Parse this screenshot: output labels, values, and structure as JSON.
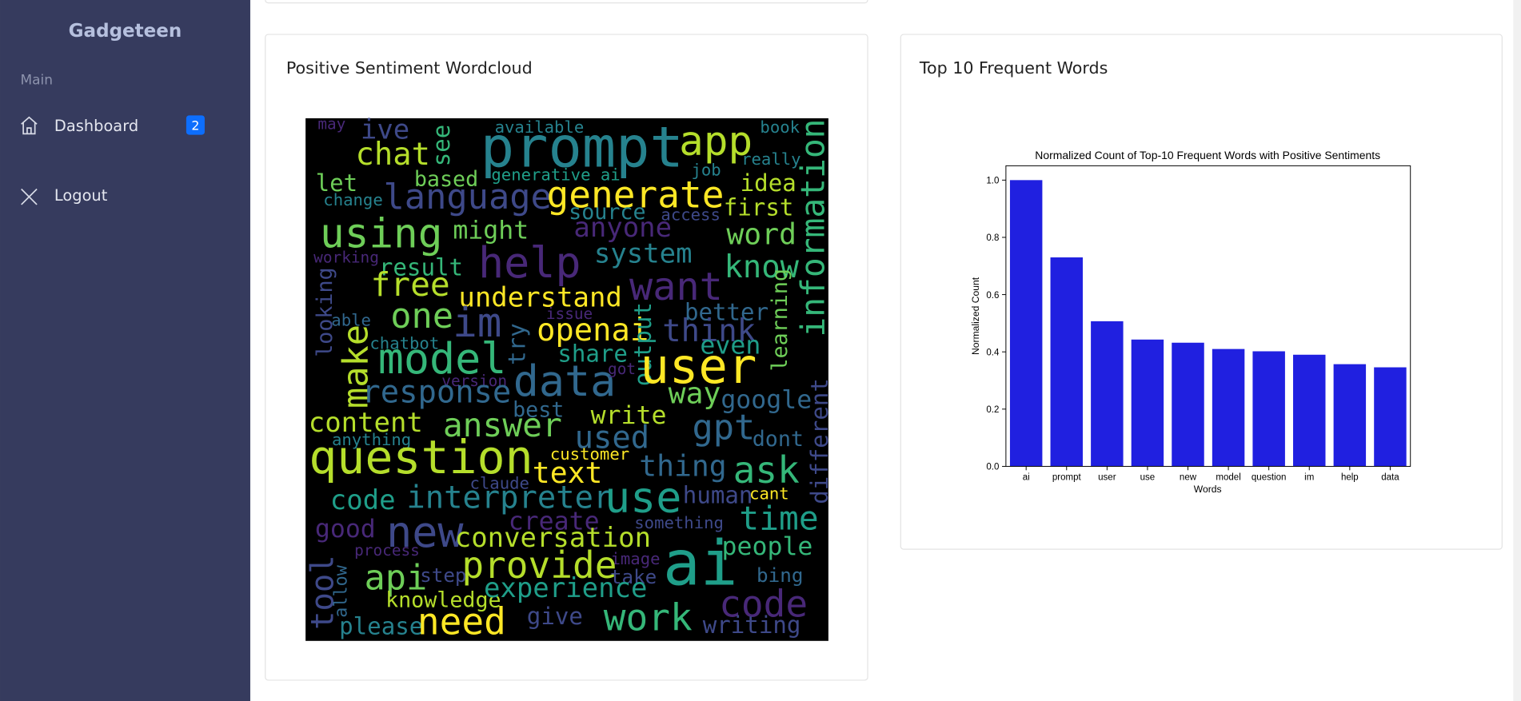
{
  "sidebar": {
    "brand": "Gadgeteen",
    "section": "Main",
    "nav": [
      {
        "label": "Dashboard",
        "badge": 2
      },
      {
        "label": "Logout"
      }
    ]
  },
  "cards": [
    {
      "title": "Positive Sentiment Wordcloud"
    },
    {
      "title": "Top 10 Frequent Words"
    }
  ],
  "wordcloud": {
    "words": [
      "prompt",
      "app",
      "ive",
      "may",
      "available",
      "book",
      "chat",
      "see",
      "really",
      "information",
      "let",
      "based",
      "generative ai",
      "job",
      "idea",
      "change",
      "language",
      "generate",
      "source",
      "access",
      "first",
      "using",
      "might",
      "anyone",
      "word",
      "working",
      "help",
      "system",
      "result",
      "know",
      "free",
      "want",
      "understand",
      "looking",
      "learning",
      "one",
      "im",
      "able",
      "issue",
      "better",
      "openai",
      "think",
      "chatbot",
      "try",
      "output",
      "make",
      "model",
      "share",
      "even",
      "user",
      "data",
      "got",
      "version",
      "response",
      "way",
      "google",
      "different",
      "best",
      "content",
      "answer",
      "write",
      "gpt",
      "anything",
      "used",
      "dont",
      "question",
      "customer",
      "text",
      "thing",
      "ask",
      "claude",
      "code",
      "interpreter",
      "use",
      "human",
      "cant",
      "create",
      "something",
      "time",
      "good",
      "new",
      "conversation",
      "process",
      "image",
      "people",
      "provide",
      "ai",
      "tool",
      "allow",
      "api",
      "step",
      "take",
      "bing",
      "knowledge",
      "experience",
      "code",
      "please",
      "need",
      "give",
      "work",
      "writing"
    ]
  },
  "chart_data": {
    "type": "bar",
    "title": "Normalized Count of Top-10 Frequent Words with Positive Sentiments",
    "x_label": "Words",
    "y_label": "Normalized Count",
    "categories": [
      "ai",
      "prompt",
      "user",
      "use",
      "new",
      "model",
      "question",
      "im",
      "help",
      "data"
    ],
    "values": [
      1.0,
      0.73,
      0.507,
      0.443,
      0.432,
      0.41,
      0.402,
      0.39,
      0.357,
      0.346
    ],
    "color": "#2020e0",
    "ylim": [
      0,
      1.05
    ],
    "yticks": [
      {
        "value": 0,
        "label": "0.0"
      },
      0.2,
      0.4,
      0.6,
      0.8,
      {
        "value": 1,
        "label": "1.0"
      }
    ]
  }
}
